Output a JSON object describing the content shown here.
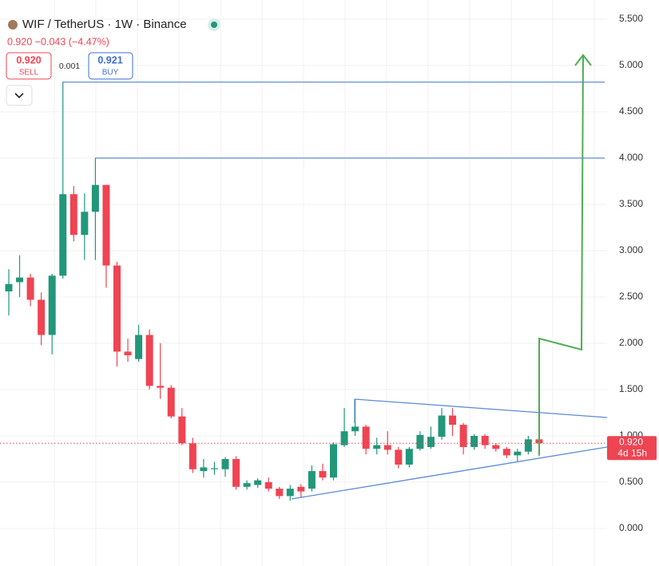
{
  "chart_data": {
    "type": "candlestick",
    "title": "WIF / TetherUS · 1W · Binance",
    "quote": "0.920 −0.043 (−4.47%)",
    "sell_price": "0.920",
    "sell_label": "SELL",
    "spread": "0.001",
    "buy_price": "0.921",
    "buy_label": "BUY",
    "up_color": "#22977a",
    "down_color": "#ef4452",
    "open": [
      2.56,
      2.66,
      2.71,
      2.47,
      2.09,
      2.73,
      3.61,
      3.17,
      3.42,
      3.71,
      2.84,
      1.91,
      1.83,
      2.09,
      1.54,
      1.52,
      1.21,
      0.92,
      0.62,
      0.64,
      0.64,
      0.75,
      0.45,
      0.47,
      0.5,
      0.43,
      0.35,
      0.45,
      0.43,
      0.62,
      0.55,
      0.9,
      1.05,
      1.1,
      0.86,
      0.9,
      0.85,
      0.69,
      0.86,
      0.88,
      0.99,
      1.22,
      1.12,
      0.88,
      1.0,
      0.9,
      0.86,
      0.79,
      0.83,
      0.963
    ],
    "high": [
      2.8,
      2.95,
      2.75,
      2.55,
      2.75,
      4.82,
      3.7,
      3.62,
      4.0,
      3.71,
      2.88,
      2.05,
      2.2,
      2.15,
      2.0,
      1.55,
      1.3,
      0.98,
      0.75,
      0.72,
      0.77,
      0.78,
      0.52,
      0.54,
      0.55,
      0.45,
      0.47,
      0.48,
      0.68,
      0.7,
      0.93,
      1.3,
      1.4,
      1.12,
      0.98,
      1.05,
      0.88,
      0.88,
      1.05,
      1.1,
      1.3,
      1.3,
      1.14,
      1.02,
      1.02,
      0.92,
      0.88,
      0.86,
      1.0,
      0.97
    ],
    "low": [
      2.3,
      2.5,
      2.4,
      1.98,
      1.88,
      2.7,
      3.1,
      2.9,
      2.9,
      2.6,
      1.75,
      1.8,
      1.8,
      1.5,
      1.4,
      1.19,
      0.9,
      0.6,
      0.55,
      0.58,
      0.56,
      0.42,
      0.42,
      0.44,
      0.4,
      0.32,
      0.3,
      0.33,
      0.4,
      0.52,
      0.52,
      0.88,
      1.0,
      0.8,
      0.8,
      0.8,
      0.65,
      0.66,
      0.84,
      0.86,
      0.96,
      1.0,
      0.8,
      0.85,
      0.86,
      0.83,
      0.76,
      0.72,
      0.8,
      0.78
    ],
    "close": [
      2.64,
      2.71,
      2.47,
      2.09,
      2.73,
      3.61,
      3.17,
      3.42,
      3.71,
      2.84,
      1.91,
      1.87,
      2.09,
      1.54,
      1.52,
      1.21,
      0.92,
      0.64,
      0.66,
      0.65,
      0.75,
      0.45,
      0.49,
      0.52,
      0.43,
      0.35,
      0.43,
      0.4,
      0.62,
      0.55,
      0.91,
      1.05,
      1.1,
      0.86,
      0.9,
      0.85,
      0.69,
      0.86,
      1.01,
      0.99,
      1.22,
      1.12,
      0.88,
      1.0,
      0.9,
      0.86,
      0.79,
      0.83,
      0.963,
      0.92
    ],
    "ylim": [
      -0.405,
      5.707
    ],
    "yticks": [
      {
        "value": 0,
        "label": "0.000"
      },
      {
        "value": 0.5,
        "label": "0.500"
      },
      {
        "value": 1,
        "label": "1.000"
      },
      {
        "value": 1.5,
        "label": "1.500"
      },
      {
        "value": 2,
        "label": "2.000"
      },
      {
        "value": 2.5,
        "label": "2.500"
      },
      {
        "value": 3,
        "label": "3.000"
      },
      {
        "value": 3.5,
        "label": "3.500"
      },
      {
        "value": 4,
        "label": "4.000"
      },
      {
        "value": 4.5,
        "label": "4.500"
      },
      {
        "value": 5,
        "label": "5.000"
      },
      {
        "value": 5.5,
        "label": "5.500"
      }
    ],
    "levels": [
      4.82,
      4.0
    ],
    "last_price": {
      "value": 0.92,
      "label": "0.920"
    },
    "countdown": "4d 15h"
  }
}
